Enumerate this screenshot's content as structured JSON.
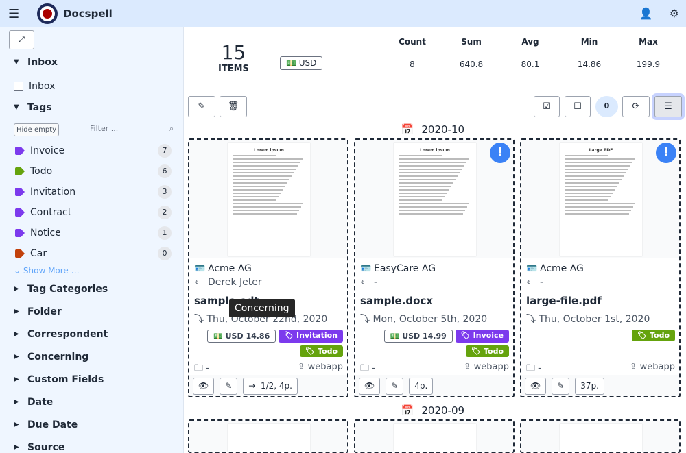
{
  "app": {
    "title": "Docspell"
  },
  "sidebar": {
    "inbox_header": "Inbox",
    "inbox_checkbox": "Inbox",
    "tags_header": "Tags",
    "hide_empty": "Hide empty",
    "filter_placeholder": "Filter ...",
    "tags": [
      {
        "label": "Invoice",
        "count": "7",
        "color": "#7c3aed"
      },
      {
        "label": "Todo",
        "count": "6",
        "color": "#65a30d"
      },
      {
        "label": "Invitation",
        "count": "3",
        "color": "#7c3aed"
      },
      {
        "label": "Contract",
        "count": "2",
        "color": "#7c3aed"
      },
      {
        "label": "Notice",
        "count": "1",
        "color": "#7c3aed"
      },
      {
        "label": "Car",
        "count": "0",
        "color": "#c2410c"
      }
    ],
    "show_more": "Show More …",
    "sections": [
      "Tag Categories",
      "Folder",
      "Correspondent",
      "Concerning",
      "Custom Fields",
      "Date",
      "Due Date",
      "Source"
    ]
  },
  "summary": {
    "count": "15",
    "label": "ITEMS",
    "currency": "USD",
    "headers": [
      "Count",
      "Sum",
      "Avg",
      "Min",
      "Max"
    ],
    "values": [
      "8",
      "640.8",
      "80.1",
      "14.86",
      "199.9"
    ]
  },
  "toolbar": {
    "selected_count": "0"
  },
  "groups": [
    {
      "month": "2020-10"
    },
    {
      "month": "2020-09"
    }
  ],
  "cards": [
    {
      "correspondent": "Acme AG",
      "concerning": "Derek Jeter",
      "name": "sample.odt",
      "date": "Thu, October 22nd, 2020",
      "amount": "USD  14.86",
      "tags": [
        {
          "label": "Invitation",
          "color": "#7c3aed"
        },
        {
          "label": "Todo",
          "color": "#65a30d"
        }
      ],
      "folder": "-",
      "source": "webapp",
      "pages": "1/2, 4p.",
      "new": false,
      "thumb_title": "Lorem ipsum"
    },
    {
      "correspondent": "EasyCare AG",
      "concerning": "-",
      "name": "sample.docx",
      "date": "Mon, October 5th, 2020",
      "amount": "USD  14.99",
      "tags": [
        {
          "label": "Invoice",
          "color": "#7c3aed"
        },
        {
          "label": "Todo",
          "color": "#65a30d"
        }
      ],
      "folder": "-",
      "source": "webapp",
      "pages": "4p.",
      "new": true,
      "thumb_title": "Lorem ipsum"
    },
    {
      "correspondent": "Acme AG",
      "concerning": "-",
      "name": "large-file.pdf",
      "date": "Thu, October 1st, 2020",
      "amount": "",
      "tags": [
        {
          "label": "Todo",
          "color": "#65a30d"
        }
      ],
      "folder": "-",
      "source": "webapp",
      "pages": "37p.",
      "new": true,
      "thumb_title": "Large PDF"
    }
  ],
  "tooltip": "Concerning"
}
